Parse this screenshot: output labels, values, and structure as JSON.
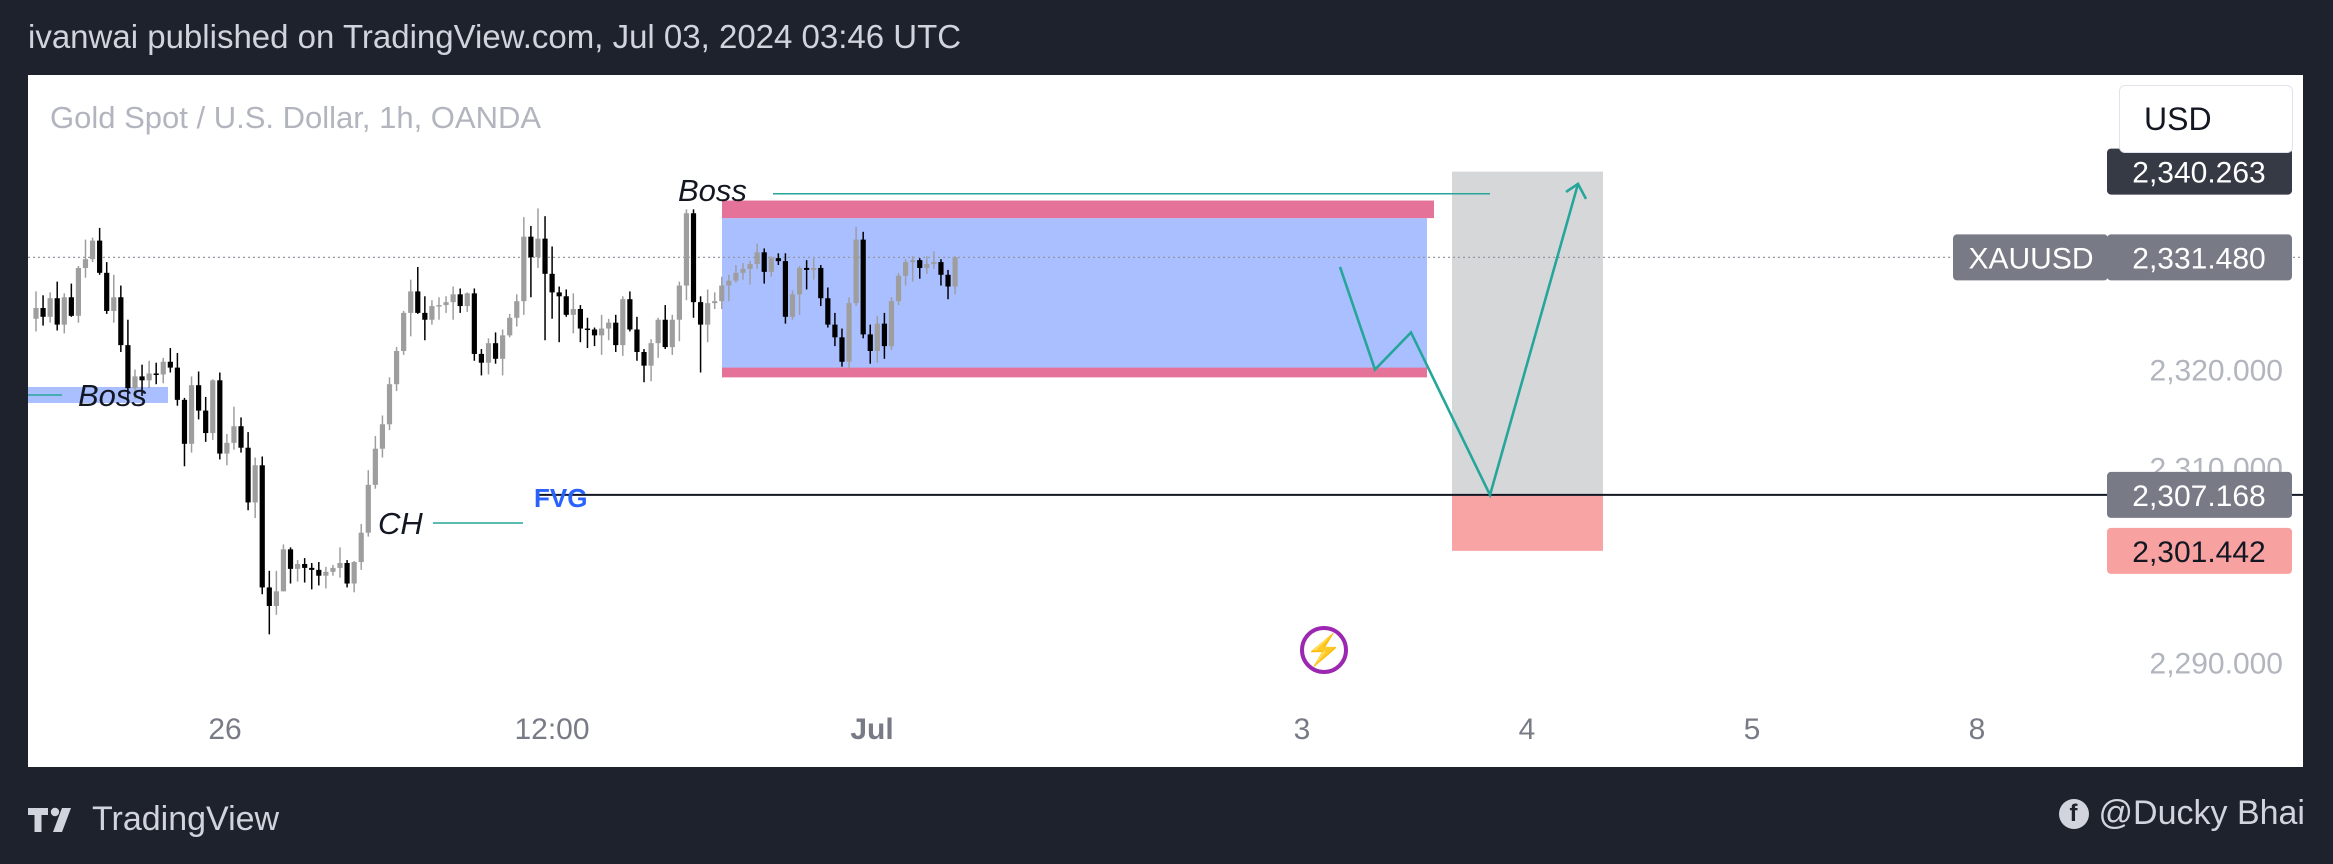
{
  "header": {
    "publish_line": "ivanwai published on TradingView.com, Jul 03, 2024 03:46 UTC"
  },
  "chart_header": {
    "symbol_title": "Gold Spot / U.S. Dollar, 1h, OANDA",
    "currency": "USD"
  },
  "footer": {
    "brand": "TradingView",
    "author": "@Ducky Bhai"
  },
  "colors": {
    "up": "#9e9e9e",
    "down": "#000000",
    "range_box": "#aabfff",
    "range_edge": "#e57399",
    "target_box": "#d6d7d9",
    "stop_box": "#f8a4a4",
    "path": "#26a69a",
    "fvg": "#2962ff"
  },
  "chart_data": {
    "type": "candlestick",
    "title": "Gold Spot / U.S. Dollar, 1h, OANDA",
    "symbol": "XAUUSD",
    "last_price": "2,331.480",
    "y_axis": {
      "range": [
        2285,
        2350
      ],
      "tick_labels": [
        "2,320.000",
        "2,310.000",
        "2,290.000"
      ],
      "price_tags": [
        {
          "label": "",
          "value": "2,340.263",
          "price": 2340.263,
          "style": "dark"
        },
        {
          "label": "XAUUSD",
          "value": "2,331.480",
          "price": 2331.48,
          "style": "gray"
        },
        {
          "label": "",
          "value": "2,307.168",
          "price": 2307.168,
          "style": "gray"
        },
        {
          "label": "",
          "value": "2,301.442",
          "price": 2301.442,
          "style": "red"
        }
      ]
    },
    "x_axis": {
      "tick_labels": [
        "26",
        "12:00",
        "Jul",
        "3",
        "4",
        "5",
        "8"
      ],
      "bold": [
        "Jul"
      ]
    },
    "annotations": {
      "boss_left": "Boss",
      "boss_top": "Boss",
      "ch": "CH",
      "fvg": "FVG"
    },
    "structures": {
      "range_box": {
        "top": 2335.5,
        "bottom": 2320
      },
      "range_edge_top": [
        2335.5,
        2337.3
      ],
      "range_edge_bottom": [
        2319.2,
        2320.2
      ],
      "fvg_level": 2307.168,
      "boss_top_level": 2338.0,
      "boss_left_level": 2317.4,
      "ch_level": 2304.3,
      "target_price": 2340.263,
      "stop_price": 2301.442,
      "projection_path": [
        2330.5,
        2320.0,
        2323.8,
        2307.168,
        2339.0
      ]
    },
    "candles": [
      [
        2325.2,
        2328.0,
        2323.9,
        2326.3
      ],
      [
        2326.3,
        2327.6,
        2324.5,
        2325.4
      ],
      [
        2325.4,
        2327.9,
        2324.8,
        2327.3
      ],
      [
        2327.3,
        2329.0,
        2324.0,
        2324.6
      ],
      [
        2324.6,
        2327.8,
        2323.7,
        2327.4
      ],
      [
        2327.4,
        2328.8,
        2325.4,
        2325.5
      ],
      [
        2325.5,
        2330.6,
        2324.8,
        2330.4
      ],
      [
        2330.4,
        2333.3,
        2329.4,
        2331.3
      ],
      [
        2331.3,
        2333.5,
        2331.0,
        2333.2
      ],
      [
        2333.2,
        2334.5,
        2329.7,
        2329.9
      ],
      [
        2329.9,
        2331.0,
        2325.7,
        2326.0
      ],
      [
        2326.0,
        2329.7,
        2324.8,
        2327.4
      ],
      [
        2327.4,
        2328.6,
        2321.8,
        2322.5
      ],
      [
        2322.5,
        2325.1,
        2316.7,
        2318.1
      ],
      [
        2318.1,
        2320.0,
        2317.0,
        2319.3
      ],
      [
        2319.3,
        2320.5,
        2317.3,
        2318.9
      ],
      [
        2318.9,
        2320.9,
        2318.1,
        2319.6
      ],
      [
        2319.6,
        2320.7,
        2318.5,
        2319.5
      ],
      [
        2319.5,
        2321.2,
        2318.6,
        2320.8
      ],
      [
        2320.8,
        2322.2,
        2319.7,
        2320.2
      ],
      [
        2320.2,
        2321.7,
        2316.3,
        2316.9
      ],
      [
        2316.9,
        2317.1,
        2310.1,
        2312.4
      ],
      [
        2312.4,
        2319.3,
        2311.5,
        2318.4
      ],
      [
        2318.4,
        2319.8,
        2314.9,
        2315.8
      ],
      [
        2315.8,
        2317.2,
        2312.6,
        2313.5
      ],
      [
        2313.5,
        2319.0,
        2312.8,
        2318.9
      ],
      [
        2318.9,
        2319.7,
        2310.8,
        2311.4
      ],
      [
        2311.4,
        2313.4,
        2310.2,
        2312.5
      ],
      [
        2312.5,
        2316.2,
        2311.8,
        2314.2
      ],
      [
        2314.2,
        2315.1,
        2311.5,
        2312.0
      ],
      [
        2312.0,
        2313.6,
        2305.6,
        2306.4
      ],
      [
        2306.4,
        2311.0,
        2304.8,
        2310.2
      ],
      [
        2310.2,
        2311.1,
        2297.0,
        2297.7
      ],
      [
        2297.7,
        2299.4,
        2292.9,
        2295.8
      ],
      [
        2295.8,
        2299.4,
        2294.9,
        2297.3
      ],
      [
        2297.3,
        2302.1,
        2297.3,
        2301.6
      ],
      [
        2301.6,
        2301.8,
        2298.1,
        2299.6
      ],
      [
        2299.6,
        2300.5,
        2298.3,
        2300.1
      ],
      [
        2300.1,
        2300.7,
        2298.2,
        2299.7
      ],
      [
        2299.7,
        2300.2,
        2297.5,
        2299.5
      ],
      [
        2299.5,
        2300.3,
        2297.9,
        2298.9
      ],
      [
        2298.9,
        2299.8,
        2297.6,
        2299.3
      ],
      [
        2299.3,
        2300.0,
        2298.9,
        2299.7
      ],
      [
        2299.7,
        2301.8,
        2298.7,
        2300.2
      ],
      [
        2300.2,
        2300.5,
        2297.7,
        2298.1
      ],
      [
        2298.1,
        2300.4,
        2297.2,
        2300.3
      ],
      [
        2300.3,
        2304.2,
        2299.5,
        2303.3
      ],
      [
        2303.3,
        2309.7,
        2302.9,
        2308.2
      ],
      [
        2308.2,
        2313.2,
        2307.8,
        2311.9
      ],
      [
        2311.9,
        2315.3,
        2311.0,
        2314.4
      ],
      [
        2314.4,
        2319.2,
        2313.8,
        2318.5
      ],
      [
        2318.5,
        2322.3,
        2317.8,
        2321.9
      ],
      [
        2321.9,
        2326.0,
        2321.5,
        2325.8
      ],
      [
        2325.8,
        2329.2,
        2323.4,
        2328.0
      ],
      [
        2328.0,
        2330.5,
        2325.7,
        2325.8
      ],
      [
        2325.8,
        2327.5,
        2323.0,
        2325.1
      ],
      [
        2325.1,
        2327.1,
        2324.6,
        2326.5
      ],
      [
        2326.5,
        2327.4,
        2325.1,
        2326.6
      ],
      [
        2326.6,
        2327.5,
        2325.8,
        2326.9
      ],
      [
        2326.9,
        2328.5,
        2325.1,
        2327.7
      ],
      [
        2327.7,
        2328.3,
        2325.8,
        2326.5
      ],
      [
        2326.5,
        2327.9,
        2325.9,
        2327.8
      ],
      [
        2327.8,
        2328.3,
        2320.9,
        2321.6
      ],
      [
        2321.6,
        2322.1,
        2319.4,
        2320.7
      ],
      [
        2320.7,
        2323.2,
        2319.5,
        2322.7
      ],
      [
        2322.7,
        2323.8,
        2320.6,
        2321.1
      ],
      [
        2321.1,
        2324.1,
        2319.4,
        2323.5
      ],
      [
        2323.5,
        2325.7,
        2323.3,
        2325.3
      ],
      [
        2325.3,
        2327.7,
        2324.4,
        2327.0
      ],
      [
        2327.0,
        2335.6,
        2325.6,
        2333.6
      ],
      [
        2333.6,
        2334.7,
        2327.4,
        2331.5
      ],
      [
        2331.5,
        2336.5,
        2330.4,
        2333.4
      ],
      [
        2333.4,
        2335.7,
        2323.0,
        2329.8
      ],
      [
        2329.8,
        2332.6,
        2325.2,
        2327.9
      ],
      [
        2327.9,
        2328.5,
        2322.8,
        2327.5
      ],
      [
        2327.5,
        2328.2,
        2325.4,
        2325.6
      ],
      [
        2325.6,
        2327.8,
        2323.7,
        2326.2
      ],
      [
        2326.2,
        2326.6,
        2322.8,
        2324.2
      ],
      [
        2324.2,
        2325.3,
        2322.2,
        2324.1
      ],
      [
        2324.1,
        2324.3,
        2322.4,
        2323.5
      ],
      [
        2323.5,
        2325.6,
        2321.5,
        2324.2
      ],
      [
        2324.2,
        2325.2,
        2323.0,
        2324.8
      ],
      [
        2324.8,
        2325.6,
        2321.8,
        2322.5
      ],
      [
        2322.5,
        2327.5,
        2321.4,
        2327.2
      ],
      [
        2327.2,
        2328.0,
        2323.9,
        2324.1
      ],
      [
        2324.1,
        2325.4,
        2320.9,
        2321.8
      ],
      [
        2321.8,
        2322.1,
        2318.7,
        2320.4
      ],
      [
        2320.4,
        2323.1,
        2318.8,
        2322.7
      ],
      [
        2322.7,
        2325.3,
        2321.2,
        2325.1
      ],
      [
        2325.1,
        2326.6,
        2322.1,
        2322.3
      ],
      [
        2322.3,
        2325.6,
        2321.5,
        2325.1
      ],
      [
        2325.1,
        2329.0,
        2322.9,
        2328.6
      ],
      [
        2328.6,
        2336.4,
        2327.1,
        2336.0
      ],
      [
        2336.0,
        2336.4,
        2325.3,
        2326.9
      ],
      [
        2326.9,
        2327.5,
        2319.7,
        2324.6
      ],
      [
        2324.6,
        2328.2,
        2322.8,
        2326.8
      ],
      [
        2326.8,
        2327.9,
        2326.2,
        2327.0
      ],
      [
        2327.0,
        2329.5,
        2326.2,
        2328.6
      ],
      [
        2328.6,
        2329.7,
        2327.0,
        2329.1
      ],
      [
        2329.1,
        2330.7,
        2328.9,
        2329.9
      ],
      [
        2329.9,
        2330.9,
        2329.2,
        2330.3
      ],
      [
        2330.3,
        2331.1,
        2328.7,
        2330.8
      ],
      [
        2330.8,
        2332.9,
        2330.3,
        2332.0
      ],
      [
        2332.0,
        2332.4,
        2328.8,
        2330.0
      ],
      [
        2330.0,
        2331.6,
        2329.5,
        2331.4
      ],
      [
        2331.4,
        2331.9,
        2330.7,
        2331.1
      ],
      [
        2331.1,
        2331.9,
        2324.7,
        2325.4
      ],
      [
        2325.4,
        2328.1,
        2325.1,
        2327.7
      ],
      [
        2327.7,
        2330.6,
        2325.6,
        2330.4
      ],
      [
        2330.4,
        2331.2,
        2328.2,
        2330.2
      ],
      [
        2330.2,
        2331.4,
        2329.2,
        2330.4
      ],
      [
        2330.4,
        2330.7,
        2326.5,
        2327.3
      ],
      [
        2327.3,
        2328.4,
        2324.3,
        2324.6
      ],
      [
        2324.6,
        2325.8,
        2322.4,
        2323.3
      ],
      [
        2323.3,
        2324.2,
        2320.3,
        2320.8
      ],
      [
        2320.8,
        2327.4,
        2320.1,
        2326.8
      ],
      [
        2326.8,
        2334.6,
        2326.5,
        2333.3
      ],
      [
        2333.3,
        2334.1,
        2323.2,
        2323.6
      ],
      [
        2323.6,
        2324.6,
        2320.6,
        2321.9
      ],
      [
        2321.9,
        2325.5,
        2320.7,
        2324.7
      ],
      [
        2324.7,
        2325.8,
        2321.1,
        2322.4
      ],
      [
        2322.4,
        2327.4,
        2322.0,
        2327.0
      ],
      [
        2327.0,
        2329.9,
        2326.6,
        2329.6
      ],
      [
        2329.6,
        2331.3,
        2328.6,
        2331.0
      ],
      [
        2331.0,
        2331.6,
        2329.0,
        2331.2
      ],
      [
        2331.2,
        2331.4,
        2329.3,
        2330.4
      ],
      [
        2330.4,
        2331.6,
        2329.8,
        2330.8
      ],
      [
        2330.8,
        2332.1,
        2330.3,
        2331.0
      ],
      [
        2331.0,
        2331.3,
        2328.6,
        2329.7
      ],
      [
        2329.7,
        2330.2,
        2327.2,
        2328.5
      ],
      [
        2328.5,
        2331.6,
        2327.7,
        2331.5
      ]
    ]
  }
}
